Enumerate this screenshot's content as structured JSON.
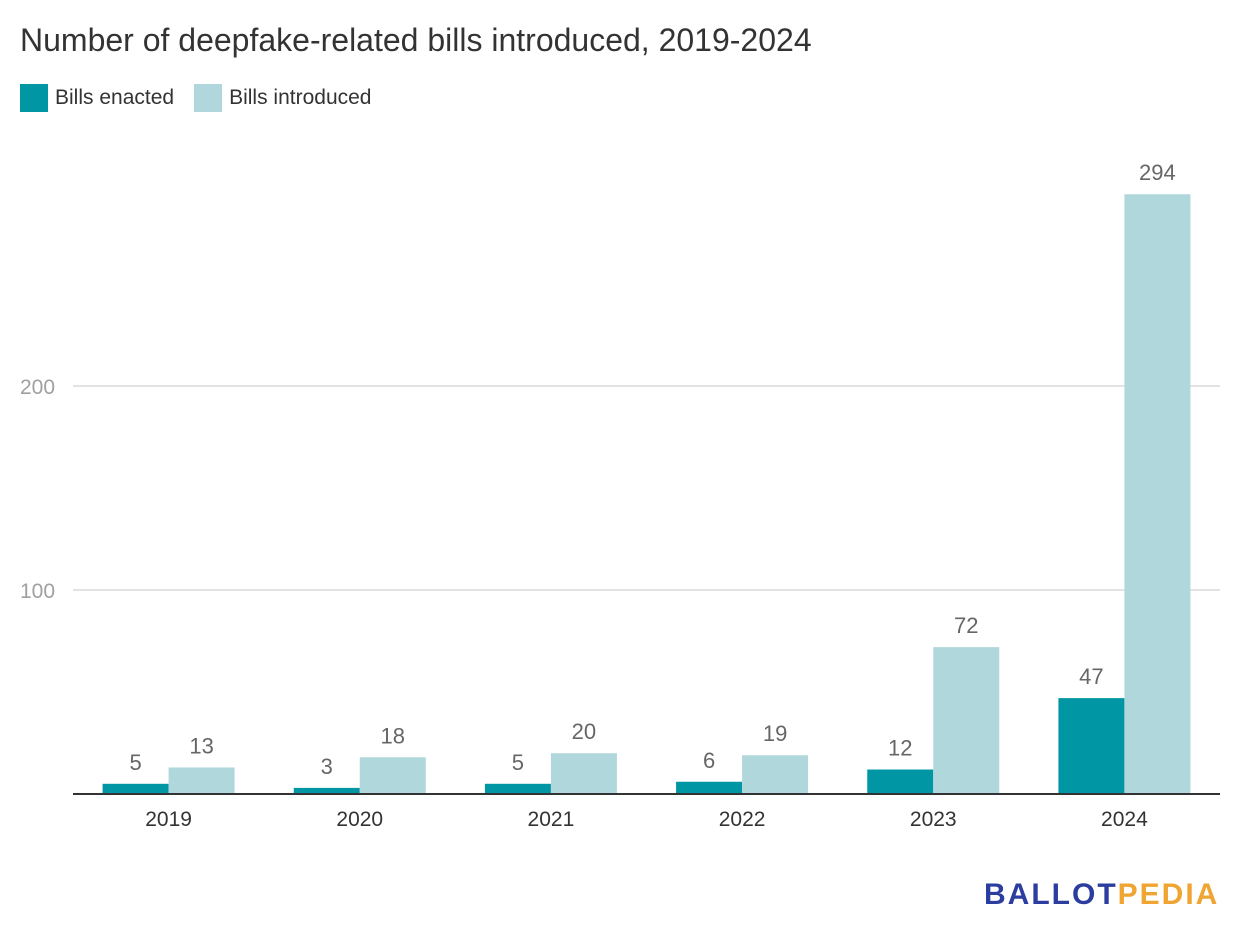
{
  "title": "Number of deepfake-related bills introduced, 2019-2024",
  "legend": {
    "enacted_label": "Bills enacted",
    "introduced_label": "Bills introduced"
  },
  "brand": {
    "part1": "BALLOT",
    "part2": "PEDIA",
    "color1": "#2b3d9f",
    "color2": "#f0a533"
  },
  "colors": {
    "enacted": "#0096a3",
    "introduced": "#b0d8dc",
    "grid": "#e3e3e3",
    "axis": "#333333",
    "label": "#666666",
    "tick_y": "#a0a0a0"
  },
  "chart_data": {
    "type": "bar",
    "title": "Number of deepfake-related bills introduced, 2019-2024",
    "categories": [
      "2019",
      "2020",
      "2021",
      "2022",
      "2023",
      "2024"
    ],
    "series": [
      {
        "name": "Bills enacted",
        "values": [
          5,
          3,
          5,
          6,
          12,
          47
        ]
      },
      {
        "name": "Bills introduced",
        "values": [
          13,
          18,
          20,
          19,
          72,
          294
        ]
      }
    ],
    "y_ticks": [
      100,
      200
    ],
    "ylim": [
      0,
      300
    ],
    "grid": true,
    "legend_position": "top-left",
    "data_labels": true
  }
}
